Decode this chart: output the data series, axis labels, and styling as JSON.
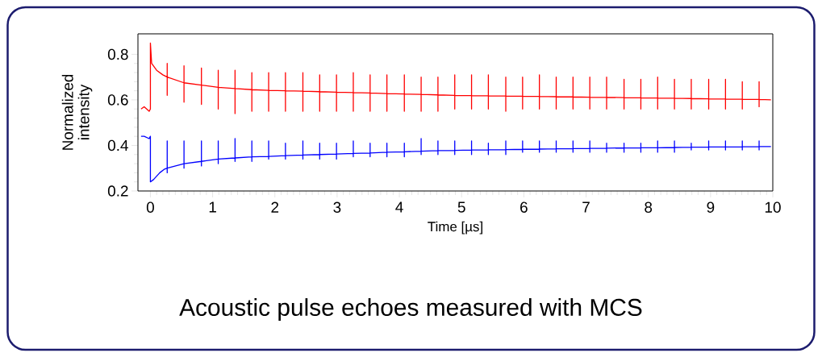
{
  "chart_data": {
    "type": "line",
    "title": "Acoustic pulse echoes measured with MCS",
    "xlabel": "Time [µs]",
    "ylabel": "Normalized intensity",
    "xlim": [
      -0.2,
      10
    ],
    "ylim": [
      0.2,
      0.89
    ],
    "xticks": [
      0,
      1,
      2,
      3,
      4,
      5,
      6,
      7,
      8,
      9,
      10
    ],
    "yticks": [
      0.2,
      0.4,
      0.6,
      0.8
    ],
    "grid": false,
    "marker": "none",
    "line_style": "solid",
    "series": [
      {
        "color": "#ff0000",
        "x": [
          -0.15,
          -0.1,
          -0.02,
          0,
          0,
          0.02,
          0.1,
          0.2,
          0.27,
          0.27,
          0.27,
          0.27,
          0.54,
          0.54,
          0.54,
          0.54,
          0.82,
          0.82,
          0.82,
          0.82,
          1.09,
          1.09,
          1.09,
          1.09,
          1.36,
          1.36,
          1.36,
          1.36,
          1.63,
          1.63,
          1.63,
          1.63,
          1.9,
          1.9,
          1.9,
          1.9,
          2.17,
          2.17,
          2.17,
          2.17,
          2.45,
          2.45,
          2.45,
          2.45,
          2.72,
          2.72,
          2.72,
          2.72,
          2.99,
          2.99,
          2.99,
          2.99,
          3.26,
          3.26,
          3.26,
          3.26,
          3.53,
          3.53,
          3.53,
          3.53,
          3.8,
          3.8,
          3.8,
          3.8,
          4.08,
          4.08,
          4.08,
          4.08,
          4.35,
          4.35,
          4.35,
          4.35,
          4.62,
          4.62,
          4.62,
          4.62,
          4.89,
          4.89,
          4.89,
          4.89,
          5.16,
          5.16,
          5.16,
          5.16,
          5.43,
          5.43,
          5.43,
          5.43,
          5.71,
          5.71,
          5.71,
          5.71,
          5.98,
          5.98,
          5.98,
          5.98,
          6.25,
          6.25,
          6.25,
          6.25,
          6.52,
          6.52,
          6.52,
          6.52,
          6.79,
          6.79,
          6.79,
          6.79,
          7.06,
          7.06,
          7.06,
          7.06,
          7.33,
          7.33,
          7.33,
          7.33,
          7.61,
          7.61,
          7.61,
          7.61,
          7.88,
          7.88,
          7.88,
          7.88,
          8.15,
          8.15,
          8.15,
          8.15,
          8.42,
          8.42,
          8.42,
          8.42,
          8.69,
          8.69,
          8.69,
          8.69,
          8.97,
          8.97,
          8.97,
          8.97,
          9.24,
          9.24,
          9.24,
          9.24,
          9.51,
          9.51,
          9.51,
          9.51,
          9.78,
          9.78,
          9.78,
          9.78,
          9.97
        ],
        "values": [
          0.56,
          0.57,
          0.55,
          0.56,
          0.85,
          0.76,
          0.73,
          0.71,
          0.7,
          0.76,
          0.62,
          0.7,
          0.675,
          0.75,
          0.59,
          0.675,
          0.665,
          0.74,
          0.58,
          0.665,
          0.655,
          0.73,
          0.56,
          0.655,
          0.65,
          0.73,
          0.54,
          0.65,
          0.645,
          0.72,
          0.55,
          0.645,
          0.642,
          0.72,
          0.55,
          0.642,
          0.64,
          0.72,
          0.55,
          0.64,
          0.638,
          0.72,
          0.55,
          0.638,
          0.636,
          0.71,
          0.55,
          0.636,
          0.634,
          0.71,
          0.55,
          0.634,
          0.632,
          0.72,
          0.55,
          0.632,
          0.63,
          0.71,
          0.55,
          0.63,
          0.628,
          0.71,
          0.55,
          0.628,
          0.626,
          0.71,
          0.55,
          0.626,
          0.624,
          0.7,
          0.55,
          0.624,
          0.622,
          0.7,
          0.55,
          0.622,
          0.62,
          0.71,
          0.56,
          0.62,
          0.619,
          0.71,
          0.56,
          0.619,
          0.618,
          0.71,
          0.56,
          0.618,
          0.617,
          0.7,
          0.55,
          0.617,
          0.616,
          0.7,
          0.56,
          0.616,
          0.615,
          0.71,
          0.56,
          0.615,
          0.614,
          0.7,
          0.56,
          0.614,
          0.613,
          0.7,
          0.56,
          0.613,
          0.612,
          0.7,
          0.56,
          0.612,
          0.611,
          0.7,
          0.56,
          0.611,
          0.61,
          0.69,
          0.56,
          0.61,
          0.609,
          0.69,
          0.56,
          0.609,
          0.608,
          0.7,
          0.56,
          0.608,
          0.607,
          0.69,
          0.56,
          0.607,
          0.606,
          0.69,
          0.56,
          0.606,
          0.605,
          0.69,
          0.56,
          0.605,
          0.604,
          0.69,
          0.56,
          0.604,
          0.603,
          0.68,
          0.56,
          0.603,
          0.602,
          0.68,
          0.57,
          0.602,
          0.6
        ]
      },
      {
        "color": "#0000ff",
        "x": [
          -0.15,
          -0.1,
          -0.02,
          0,
          0,
          0.05,
          0.15,
          0.22,
          0.27,
          0.27,
          0.27,
          0.27,
          0.54,
          0.54,
          0.54,
          0.54,
          0.82,
          0.82,
          0.82,
          0.82,
          1.09,
          1.09,
          1.09,
          1.09,
          1.36,
          1.36,
          1.36,
          1.36,
          1.63,
          1.63,
          1.63,
          1.63,
          1.9,
          1.9,
          1.9,
          1.9,
          2.17,
          2.17,
          2.17,
          2.17,
          2.45,
          2.45,
          2.45,
          2.45,
          2.72,
          2.72,
          2.72,
          2.72,
          2.99,
          2.99,
          2.99,
          2.99,
          3.26,
          3.26,
          3.26,
          3.26,
          3.53,
          3.53,
          3.53,
          3.53,
          3.8,
          3.8,
          3.8,
          3.8,
          4.08,
          4.08,
          4.08,
          4.08,
          4.35,
          4.35,
          4.35,
          4.35,
          4.62,
          4.62,
          4.62,
          4.62,
          4.89,
          4.89,
          4.89,
          4.89,
          5.16,
          5.16,
          5.16,
          5.16,
          5.43,
          5.43,
          5.43,
          5.43,
          5.71,
          5.71,
          5.71,
          5.71,
          5.98,
          5.98,
          5.98,
          5.98,
          6.25,
          6.25,
          6.25,
          6.25,
          6.52,
          6.52,
          6.52,
          6.52,
          6.79,
          6.79,
          6.79,
          6.79,
          7.06,
          7.06,
          7.06,
          7.06,
          7.33,
          7.33,
          7.33,
          7.33,
          7.61,
          7.61,
          7.61,
          7.61,
          7.88,
          7.88,
          7.88,
          7.88,
          8.15,
          8.15,
          8.15,
          8.15,
          8.42,
          8.42,
          8.42,
          8.42,
          8.69,
          8.69,
          8.69,
          8.69,
          8.97,
          8.97,
          8.97,
          8.97,
          9.24,
          9.24,
          9.24,
          9.24,
          9.51,
          9.51,
          9.51,
          9.51,
          9.78,
          9.78,
          9.78,
          9.78,
          9.97
        ],
        "values": [
          0.44,
          0.44,
          0.43,
          0.44,
          0.24,
          0.25,
          0.28,
          0.295,
          0.3,
          0.42,
          0.28,
          0.3,
          0.32,
          0.42,
          0.3,
          0.32,
          0.33,
          0.42,
          0.31,
          0.33,
          0.34,
          0.42,
          0.32,
          0.34,
          0.345,
          0.43,
          0.33,
          0.345,
          0.35,
          0.42,
          0.33,
          0.35,
          0.352,
          0.42,
          0.34,
          0.352,
          0.355,
          0.41,
          0.34,
          0.355,
          0.358,
          0.42,
          0.34,
          0.358,
          0.36,
          0.41,
          0.34,
          0.36,
          0.362,
          0.41,
          0.34,
          0.362,
          0.365,
          0.42,
          0.35,
          0.365,
          0.367,
          0.41,
          0.35,
          0.367,
          0.37,
          0.41,
          0.35,
          0.37,
          0.372,
          0.41,
          0.35,
          0.372,
          0.375,
          0.43,
          0.36,
          0.375,
          0.377,
          0.42,
          0.36,
          0.377,
          0.378,
          0.42,
          0.36,
          0.378,
          0.38,
          0.42,
          0.36,
          0.38,
          0.381,
          0.41,
          0.36,
          0.381,
          0.382,
          0.42,
          0.36,
          0.382,
          0.383,
          0.42,
          0.37,
          0.383,
          0.384,
          0.42,
          0.37,
          0.384,
          0.385,
          0.42,
          0.37,
          0.385,
          0.386,
          0.42,
          0.37,
          0.386,
          0.387,
          0.42,
          0.37,
          0.387,
          0.388,
          0.41,
          0.37,
          0.388,
          0.389,
          0.41,
          0.37,
          0.389,
          0.39,
          0.41,
          0.37,
          0.39,
          0.39,
          0.42,
          0.37,
          0.39,
          0.391,
          0.42,
          0.37,
          0.391,
          0.392,
          0.41,
          0.38,
          0.392,
          0.393,
          0.42,
          0.38,
          0.393,
          0.393,
          0.42,
          0.38,
          0.393,
          0.394,
          0.42,
          0.38,
          0.394,
          0.395,
          0.42,
          0.38,
          0.395,
          0.395
        ]
      }
    ]
  }
}
